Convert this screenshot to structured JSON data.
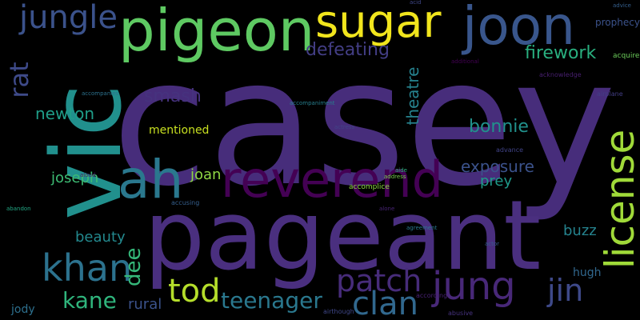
{
  "words": [
    {
      "text": "casey",
      "color": "#472d7b"
    },
    {
      "text": "pageant",
      "color": "#4a2f7f"
    },
    {
      "text": "vic",
      "color": "#21908d"
    },
    {
      "text": "pigeon",
      "color": "#5ec962"
    },
    {
      "text": "sugar",
      "color": "#f1e51d"
    },
    {
      "text": "joon",
      "color": "#39568c"
    },
    {
      "text": "reverend",
      "color": "#440154"
    },
    {
      "text": "license",
      "color": "#a0da39"
    },
    {
      "text": "ah",
      "color": "#2a788e"
    },
    {
      "text": "jungle",
      "color": "#3b528b"
    },
    {
      "text": "jung",
      "color": "#482878"
    },
    {
      "text": "khan",
      "color": "#2c728e"
    },
    {
      "text": "patch",
      "color": "#472c7a"
    },
    {
      "text": "clan",
      "color": "#31688e"
    },
    {
      "text": "jin",
      "color": "#3e4989"
    },
    {
      "text": "rat",
      "color": "#3e4a89"
    },
    {
      "text": "tod",
      "color": "#b5de2b"
    },
    {
      "text": "kane",
      "color": "#2fb47c"
    },
    {
      "text": "teenager",
      "color": "#2a788e"
    },
    {
      "text": "firework",
      "color": "#29af7f"
    },
    {
      "text": "defeating",
      "color": "#433e85"
    },
    {
      "text": "smash",
      "color": "#46327e"
    },
    {
      "text": "newton",
      "color": "#1f9e89"
    },
    {
      "text": "exposure",
      "color": "#3b528b"
    },
    {
      "text": "bonnie",
      "color": "#21918c"
    },
    {
      "text": "theatre",
      "color": "#26828e"
    },
    {
      "text": "dee",
      "color": "#35b779"
    },
    {
      "text": "joseph",
      "color": "#3dbc74"
    },
    {
      "text": "joan",
      "color": "#8fd744"
    },
    {
      "text": "beauty",
      "color": "#23898e"
    },
    {
      "text": "rural",
      "color": "#3b528b"
    },
    {
      "text": "buzz",
      "color": "#25838e"
    },
    {
      "text": "prey",
      "color": "#1f9a8a"
    },
    {
      "text": "hugh",
      "color": "#31688e"
    },
    {
      "text": "jody",
      "color": "#2d708e"
    },
    {
      "text": "mentioned",
      "color": "#c8e020"
    },
    {
      "text": "prophecy",
      "color": "#3b528b"
    },
    {
      "text": "acquire",
      "color": "#6ccd5a"
    },
    {
      "text": "airplane",
      "color": "#433e85"
    },
    {
      "text": "accomplice",
      "color": "#8fd744"
    },
    {
      "text": "acknowledge",
      "color": "#481f70"
    },
    {
      "text": "advance",
      "color": "#404387"
    },
    {
      "text": "abusive",
      "color": "#46327e"
    },
    {
      "text": "according",
      "color": "#482173"
    },
    {
      "text": "airthough",
      "color": "#3f4788"
    },
    {
      "text": "accusing",
      "color": "#355f8d"
    },
    {
      "text": "abandon",
      "color": "#22a884"
    },
    {
      "text": "aloud",
      "color": "#481769"
    },
    {
      "text": "agreement",
      "color": "#2a788e"
    },
    {
      "text": "accompanies",
      "color": "#2c728e"
    },
    {
      "text": "address",
      "color": "#7ad151"
    },
    {
      "text": "aide",
      "color": "#2db27d"
    },
    {
      "text": "acid",
      "color": "#3f4788"
    },
    {
      "text": "advice",
      "color": "#355f8d"
    },
    {
      "text": "additional",
      "color": "#440154"
    },
    {
      "text": "accompaniment",
      "color": "#277f8e"
    },
    {
      "text": "actress",
      "color": "#414487"
    },
    {
      "text": "alone",
      "color": "#482475"
    },
    {
      "text": "actor",
      "color": "#375b8d"
    }
  ]
}
